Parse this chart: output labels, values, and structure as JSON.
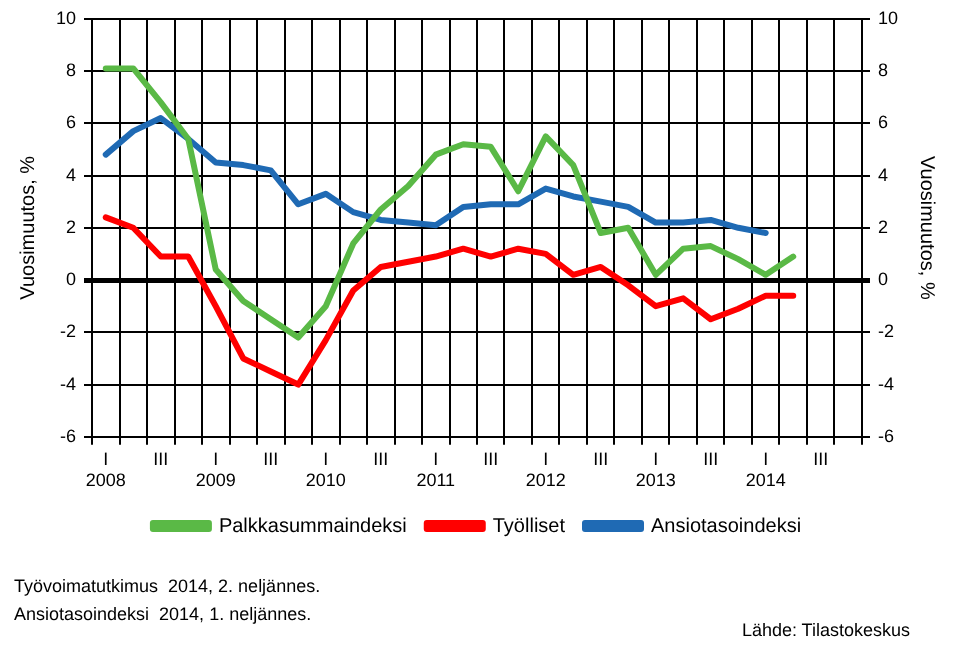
{
  "chart_data": {
    "type": "line",
    "ylabel": "Vuosimuutos, %",
    "y2label": "Vuosimuutos, %",
    "categories": [
      "I\n2008",
      null,
      "III",
      null,
      "I\n2009",
      null,
      "III",
      null,
      "I\n2010",
      null,
      "III",
      null,
      "I\n2011",
      null,
      "III",
      null,
      "I\n2012",
      null,
      "III",
      null,
      "I\n2013",
      null,
      "III",
      null,
      "I\n2014",
      null,
      "III",
      null
    ],
    "series": [
      {
        "name": "Palkkasummaindeksi",
        "color": "#5ab946",
        "values": [
          8.1,
          8.1,
          6.8,
          5.4,
          0.4,
          -0.8,
          -1.5,
          -2.2,
          -1.0,
          1.4,
          2.7,
          3.6,
          4.8,
          5.2,
          5.1,
          3.4,
          5.5,
          4.4,
          1.8,
          2.0,
          0.2,
          1.2,
          1.3,
          0.8,
          0.2,
          0.9,
          null,
          null
        ]
      },
      {
        "name": "Työlliset",
        "color": "#ff0000",
        "values": [
          2.4,
          2.0,
          0.9,
          0.9,
          -1.0,
          -3.0,
          -3.5,
          -4.0,
          -2.3,
          -0.4,
          0.5,
          0.7,
          0.9,
          1.2,
          0.9,
          1.2,
          1.0,
          0.2,
          0.5,
          -0.2,
          -1.0,
          -0.7,
          -1.5,
          -1.1,
          -0.6,
          -0.6,
          null,
          null
        ]
      },
      {
        "name": "Ansiotasoindeksi",
        "color": "#1f6ab4",
        "values": [
          4.8,
          5.7,
          6.2,
          5.4,
          4.5,
          4.4,
          4.2,
          2.9,
          3.3,
          2.6,
          2.3,
          2.2,
          2.1,
          2.8,
          2.9,
          2.9,
          3.5,
          3.2,
          3.0,
          2.8,
          2.2,
          2.2,
          2.3,
          2.0,
          1.8,
          null,
          null,
          null
        ]
      }
    ],
    "ylim": [
      -6,
      10
    ],
    "yticks": [
      -6,
      -4,
      -2,
      0,
      2,
      4,
      6,
      8,
      10
    ],
    "y2lim": [
      -6,
      10
    ],
    "y2ticks": [
      -6,
      -4,
      -2,
      0,
      2,
      4,
      6,
      8,
      10
    ],
    "grid": true,
    "legend": "bottom",
    "marker": "none",
    "line_style": "solid",
    "annotations": [
      "Työvoimatutkimus  2014, 2. neljännes.",
      "Ansiotasoindeksi  2014, 1. neljännes.",
      "Lähde: Tilastokeskus"
    ]
  }
}
